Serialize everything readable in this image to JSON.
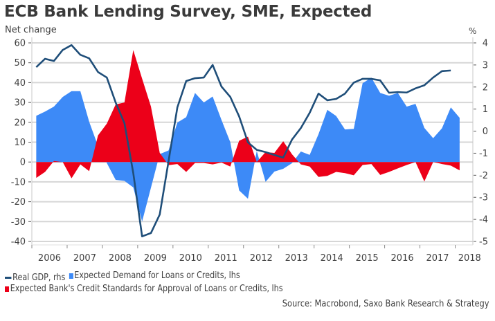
{
  "chart_data": {
    "type": "area",
    "title": "ECB Bank Lending Survey, SME, Expected",
    "ylabel_left": "Net change",
    "ylabel_right": "%",
    "source": "Source: Macrobond, Saxo Bank Research & Strategy",
    "frequency": "quarterly",
    "x_start": "2006 Q1",
    "xlim": [
      2006,
      2018.5
    ],
    "ylim_left": [
      -40,
      60
    ],
    "ylim_right": [
      -5,
      4
    ],
    "grid": true,
    "x_tick_labels": [
      "2006",
      "2007",
      "2008",
      "2009",
      "2010",
      "2011",
      "2012",
      "2013",
      "2014",
      "2015",
      "2016",
      "2017",
      "2018"
    ],
    "y_left_ticks": [
      60,
      50,
      40,
      30,
      20,
      10,
      0,
      -10,
      -20,
      -30,
      -40
    ],
    "y_right_ticks": [
      4,
      3,
      2,
      1,
      0,
      -1,
      -2,
      -3,
      -4,
      -5
    ],
    "legend_position": "bottom-left",
    "series": [
      {
        "name": "Expected Demand for Loans or Credits, lhs",
        "kind": "area",
        "axis": "left",
        "color": "#3d8af7",
        "values": [
          23.3,
          25.4,
          27.9,
          32.8,
          35.7,
          35.7,
          20.3,
          8.1,
          -0.5,
          -9.0,
          -9.5,
          -12.8,
          -30.0,
          -13.0,
          4.0,
          5.8,
          19.9,
          22.6,
          34.8,
          30.0,
          33.0,
          21.2,
          10.0,
          -14.3,
          -18.5,
          5.6,
          -10.0,
          -4.8,
          -3.4,
          -0.6,
          5.3,
          3.6,
          14.0,
          26.3,
          23.2,
          16.4,
          16.7,
          39.7,
          42.5,
          34.8,
          33.4,
          34.8,
          27.9,
          29.3,
          17.2,
          12.0,
          17.0,
          27.5,
          22.3
        ]
      },
      {
        "name": "Expected Bank's Credit Standards for Approval of Loans or Credits, lhs",
        "kind": "area",
        "axis": "left",
        "color": "#ec0019",
        "values": [
          -8.0,
          -5.0,
          0.5,
          0.0,
          -8.2,
          -1.2,
          -4.6,
          13.4,
          19.3,
          29.0,
          30.0,
          56.4,
          42.0,
          28.0,
          4.6,
          -1.6,
          -1.0,
          -5.0,
          -0.5,
          -0.5,
          -1.2,
          -0.3,
          -2.3,
          10.7,
          12.8,
          0.0,
          5.0,
          4.6,
          10.5,
          3.9,
          -1.2,
          -2.3,
          -7.5,
          -7.0,
          -5.0,
          -5.6,
          -6.7,
          -1.5,
          -1.0,
          -6.5,
          -5.0,
          -3.2,
          -1.5,
          0.0,
          -9.8,
          0.0,
          -1.0,
          -1.8,
          -4.2
        ]
      },
      {
        "name": "Real GDP, rhs",
        "kind": "line",
        "axis": "right",
        "color": "#1f4e79",
        "values": [
          2.9,
          3.28,
          3.18,
          3.68,
          3.9,
          3.46,
          3.3,
          2.68,
          2.43,
          1.3,
          0.36,
          -1.9,
          -4.77,
          -4.62,
          -3.78,
          -1.36,
          1.08,
          2.27,
          2.4,
          2.43,
          3.0,
          2.02,
          1.55,
          0.67,
          -0.51,
          -0.85,
          -0.95,
          -1.08,
          -1.2,
          -0.38,
          0.14,
          0.83,
          1.7,
          1.4,
          1.46,
          1.7,
          2.2,
          2.37,
          2.37,
          2.3,
          1.74,
          1.77,
          1.75,
          1.94,
          2.08,
          2.43,
          2.72,
          2.75
        ]
      }
    ]
  },
  "legend": {
    "row1": [
      {
        "label": "Real GDP, rhs",
        "swatch": "line",
        "color": "#1f4e79"
      },
      {
        "label": "Expected Demand for Loans or Credits, lhs",
        "swatch": "box",
        "color": "#3d8af7"
      }
    ],
    "row2": [
      {
        "label": "Expected Bank's Credit Standards for Approval of Loans or Credits, lhs",
        "swatch": "box",
        "color": "#ec0019"
      }
    ]
  }
}
